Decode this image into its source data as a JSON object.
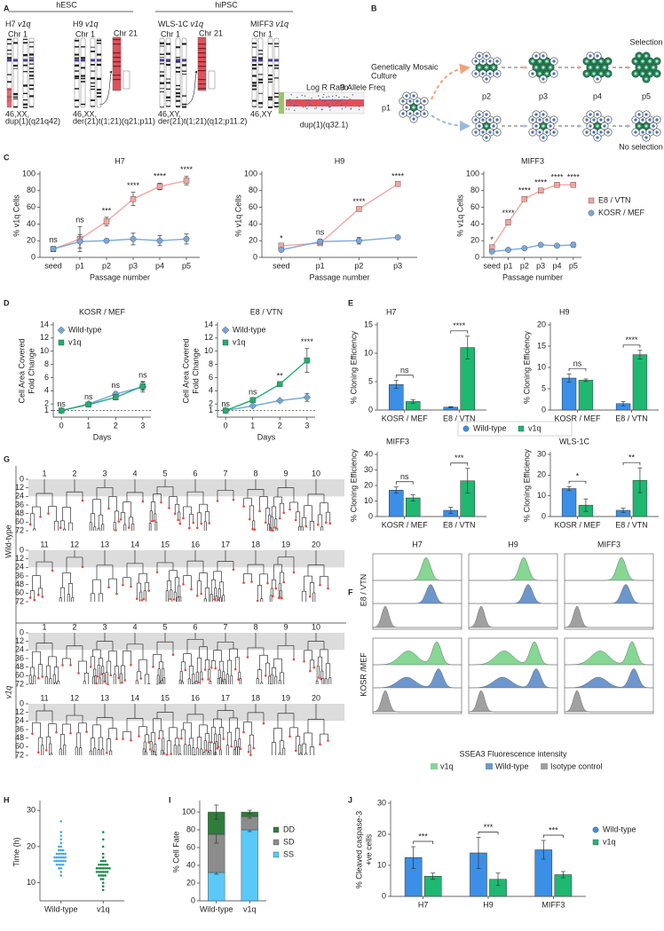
{
  "panel_labels": [
    "A",
    "B",
    "C",
    "D",
    "E",
    "F",
    "G",
    "H",
    "I",
    "J"
  ],
  "panel_a": {
    "groups": [
      "hESC",
      "hiPSC"
    ],
    "lines": [
      {
        "name": "H7",
        "variant": "v1q",
        "karyotype": [
          "46,XX,",
          "dup(1)(q21q42)"
        ]
      },
      {
        "name": "H9",
        "variant": "v1q",
        "karyotype": [
          "46,XX,",
          "der(21)t(1;21)(q21;p11)"
        ]
      },
      {
        "name": "WLS-1C",
        "variant": "v1q",
        "karyotype": [
          "46,XY,",
          "der(21)t(1;21)(q12;p11.2)"
        ]
      },
      {
        "name": "MIFF3",
        "variant": "v1q",
        "karyotype": [
          "46,XY"
        ]
      }
    ],
    "chromosome_labels": [
      "Chr 1",
      "Chr 21"
    ],
    "snp_labels": [
      "Log R Ratio",
      "B Allele Freq"
    ],
    "snp_caption": "dup(1)(q32.1)"
  },
  "panel_b": {
    "start_label": [
      "Genetically Mosaic",
      "Culture"
    ],
    "passages": [
      "p1",
      "p2",
      "p3",
      "p4",
      "p5"
    ],
    "outcomes": [
      "Selection",
      "No selection"
    ]
  },
  "panel_f": {
    "columns": [
      "H7",
      "H9",
      "MIFF3"
    ],
    "rows": [
      "E8 / VTN",
      "KOSR /MEF"
    ],
    "xlabel": "SSEA3 Fluorescence intensity",
    "legend": [
      "v1q",
      "Wild-type",
      "Isotype control"
    ],
    "colors": [
      "#86d694",
      "#6d97cc",
      "#a0a0a0"
    ]
  },
  "panel_g": {
    "groups": [
      "Wild-type",
      "v1q"
    ],
    "tree_labels": [
      "1",
      "2",
      "3",
      "4",
      "5",
      "6",
      "7",
      "8",
      "9",
      "10",
      "11",
      "12",
      "13",
      "14",
      "15",
      "16",
      "17",
      "18",
      "19",
      "20"
    ],
    "yticks": [
      0,
      12,
      24,
      36,
      48,
      60,
      72
    ]
  },
  "chart_data": [
    {
      "type": "line",
      "title": "H7",
      "categories": [
        "seed",
        "p1",
        "p2",
        "p3",
        "p4",
        "p5"
      ],
      "xlabel": "Passage number",
      "ylabel": "% v1q Cells",
      "ylim": [
        0,
        100
      ],
      "yticks": [
        0,
        20,
        40,
        60,
        80,
        100
      ],
      "series": [
        {
          "color": "#f4a6a0",
          "marker": "square",
          "values": [
            10,
            22,
            43,
            70,
            85,
            92
          ],
          "errors": [
            3,
            15,
            5,
            8,
            4,
            5
          ]
        },
        {
          "color": "#7aa8dc",
          "marker": "circle",
          "values": [
            10,
            19,
            20,
            22,
            20,
            22
          ],
          "errors": [
            3,
            8,
            2,
            7,
            6,
            6
          ]
        }
      ],
      "annotations": [
        "ns",
        "ns",
        "***",
        "****",
        "****",
        "****"
      ]
    },
    {
      "type": "line",
      "title": "H9",
      "categories": [
        "seed",
        "p1",
        "p2",
        "p3"
      ],
      "xlabel": "Passage number",
      "ylabel": "% v1q Cells",
      "ylim": [
        0,
        100
      ],
      "yticks": [
        0,
        20,
        40,
        60,
        80,
        100
      ],
      "series": [
        {
          "color": "#f4a6a0",
          "marker": "square",
          "values": [
            14,
            17,
            58,
            88
          ],
          "errors": [
            1,
            2,
            1,
            1
          ]
        },
        {
          "color": "#7aa8dc",
          "marker": "circle",
          "values": [
            9,
            19,
            20,
            24
          ],
          "errors": [
            1,
            3,
            4,
            1
          ]
        }
      ],
      "annotations": [
        "*",
        "ns",
        "****",
        "****"
      ]
    },
    {
      "type": "line",
      "title": "MIFF3",
      "categories": [
        "seed",
        "p1",
        "p2",
        "p3",
        "p4",
        "p5"
      ],
      "xlabel": "Passage number",
      "ylabel": "% v1q Cells",
      "ylim": [
        0,
        100
      ],
      "yticks": [
        0,
        20,
        40,
        60,
        80,
        100
      ],
      "legend": "right",
      "series": [
        {
          "name": "E8 / VTN",
          "color": "#f4a6a0",
          "marker": "square",
          "values": [
            12,
            42,
            70,
            80,
            87,
            87
          ],
          "errors": [
            1,
            3,
            2,
            2,
            1,
            1
          ]
        },
        {
          "name": "KOSR / MEF",
          "color": "#7aa8dc",
          "marker": "circle",
          "values": [
            7,
            9,
            11,
            15,
            14,
            15
          ],
          "errors": [
            1,
            1,
            1,
            1,
            1,
            3
          ]
        }
      ],
      "annotations": [
        "*",
        "****",
        "****",
        "****",
        "****",
        "****"
      ]
    },
    {
      "type": "line",
      "title": "KOSR / MEF",
      "x": [
        0,
        1,
        2,
        3
      ],
      "xlim": [
        -0.3,
        3.3
      ],
      "xticks": [
        0,
        1,
        2,
        3
      ],
      "xlabel": "Days",
      "ylabel": [
        "Cell Area Covered",
        "Fold Change"
      ],
      "ylim": [
        0,
        14
      ],
      "yticks": [
        1,
        2,
        4,
        6,
        8,
        10,
        12,
        14
      ],
      "refline": 1,
      "legend": "upper left",
      "series": [
        {
          "name": "Wild-type",
          "color": "#6ea6dc",
          "marker": "diamond",
          "values": [
            1,
            2,
            3.5,
            4.6
          ],
          "errors": [
            0,
            0.1,
            0.3,
            0.8
          ]
        },
        {
          "name": "v1q",
          "color": "#1fae6b",
          "marker": "square",
          "values": [
            1,
            1.9,
            3,
            4.7
          ],
          "errors": [
            0,
            0.1,
            0.4,
            0.6
          ]
        }
      ],
      "annotations": [
        "ns",
        "ns",
        "ns",
        "ns"
      ]
    },
    {
      "type": "line",
      "title": "E8 / VTN",
      "x": [
        0,
        1,
        2,
        3
      ],
      "xlim": [
        -0.3,
        3.3
      ],
      "xticks": [
        0,
        1,
        2,
        3
      ],
      "xlabel": "Days",
      "ylabel": [
        "Cell Area Covered",
        "Fold Change"
      ],
      "ylim": [
        0,
        14
      ],
      "yticks": [
        1,
        2,
        4,
        6,
        8,
        10,
        12,
        14
      ],
      "refline": 1,
      "legend": "upper left",
      "series": [
        {
          "name": "Wild-type",
          "color": "#6ea6dc",
          "marker": "diamond",
          "values": [
            1,
            1.7,
            2.5,
            3
          ],
          "errors": [
            0,
            0.1,
            0.2,
            0.6
          ]
        },
        {
          "name": "v1q",
          "color": "#1fae6b",
          "marker": "square",
          "values": [
            1,
            2.6,
            5,
            8.6
          ],
          "errors": [
            0,
            0.2,
            0.2,
            1.8
          ]
        }
      ],
      "annotations": [
        "ns",
        "ns",
        "**",
        "****"
      ]
    },
    {
      "type": "bar",
      "title": "H7",
      "categories": [
        "KOSR / MEF",
        "E8 / VTN"
      ],
      "ylabel": "% Cloning Efficiency",
      "ylim": [
        0,
        15
      ],
      "yticks": [
        0,
        5,
        10,
        15
      ],
      "legend": "below",
      "series": [
        {
          "name": "Wild-type",
          "color": "#3b8fe6",
          "marker": "circle",
          "values": [
            4.5,
            0.5
          ],
          "errors": [
            0.7,
            0.1
          ]
        },
        {
          "name": "v1q",
          "color": "#1fb870",
          "marker": "square",
          "values": [
            1.5,
            11
          ],
          "errors": [
            0.3,
            2
          ]
        }
      ],
      "annotations": [
        "ns",
        "****"
      ]
    },
    {
      "type": "bar",
      "title": "H9",
      "categories": [
        "KOSR / MEF",
        "E8 / VTN"
      ],
      "ylabel": "% Cloning Efficiency",
      "ylim": [
        0,
        20
      ],
      "yticks": [
        0,
        5,
        10,
        15,
        20
      ],
      "series": [
        {
          "color": "#3b8fe6",
          "values": [
            7.5,
            1.5
          ],
          "errors": [
            1,
            0.5
          ]
        },
        {
          "color": "#1fb870",
          "values": [
            7,
            13
          ],
          "errors": [
            0.3,
            1
          ]
        }
      ],
      "annotations": [
        "ns",
        "****"
      ]
    },
    {
      "type": "bar",
      "title": "MIFF3",
      "categories": [
        "KOSR / MEF",
        "E8 / VTN"
      ],
      "ylabel": "% Cloning Efficiency",
      "ylim": [
        0,
        40
      ],
      "yticks": [
        0,
        10,
        20,
        30,
        40
      ],
      "series": [
        {
          "color": "#3b8fe6",
          "values": [
            17,
            4
          ],
          "errors": [
            2,
            2
          ]
        },
        {
          "color": "#1fb870",
          "values": [
            12,
            23
          ],
          "errors": [
            2,
            8
          ]
        }
      ],
      "annotations": [
        "ns",
        "***"
      ]
    },
    {
      "type": "bar",
      "title": "WLS-1C",
      "categories": [
        "KOSR / MEF",
        "E8 / VTN"
      ],
      "ylabel": "% Cloning Efficiency",
      "ylim": [
        0,
        30
      ],
      "yticks": [
        0,
        10,
        20,
        30
      ],
      "series": [
        {
          "color": "#3b8fe6",
          "values": [
            13.5,
            3
          ],
          "errors": [
            1,
            1
          ]
        },
        {
          "color": "#1fb870",
          "values": [
            5.5,
            17.5
          ],
          "errors": [
            3,
            6
          ]
        }
      ],
      "annotations": [
        "*",
        "**"
      ]
    },
    {
      "type": "strip",
      "categories": [
        "Wild-type",
        "v1q"
      ],
      "ylabel": "Time (h)",
      "ylim": [
        5,
        32
      ],
      "yticks": [
        10,
        20,
        30
      ],
      "series": [
        {
          "color": "#4aa8e8",
          "values": [
            17,
            18,
            16,
            15,
            19,
            17,
            20,
            14,
            16,
            18,
            17,
            21,
            13,
            15,
            22,
            18,
            16,
            17,
            19,
            24,
            14,
            16,
            18,
            27,
            15,
            17,
            20,
            12,
            16,
            19,
            17,
            18,
            15,
            23,
            16
          ]
        },
        {
          "color": "#1a8a4a",
          "values": [
            14,
            13,
            15,
            12,
            16,
            14,
            11,
            15,
            13,
            17,
            14,
            12,
            18,
            10,
            15,
            13,
            14,
            20,
            12,
            16,
            9,
            14,
            13,
            15,
            22,
            11,
            14,
            16,
            13,
            12,
            24,
            15,
            14,
            8,
            13
          ]
        }
      ]
    },
    {
      "type": "stacked_bar",
      "categories": [
        "Wild-type",
        "v1q"
      ],
      "ylabel": "% Cell Fate",
      "ylim": [
        0,
        110
      ],
      "yticks": [
        0,
        20,
        40,
        60,
        80,
        100
      ],
      "legend": "right",
      "series": [
        {
          "name": "SS",
          "color": "#5bc9f7",
          "values": [
            32,
            80
          ],
          "errors": [
            2,
            2
          ]
        },
        {
          "name": "SD",
          "color": "#8c8c8c",
          "values": [
            43,
            15
          ],
          "errors": [
            10,
            2
          ]
        },
        {
          "name": "DD",
          "color": "#2e7d3a",
          "values": [
            25,
            5
          ],
          "errors": [
            8,
            2
          ]
        }
      ]
    },
    {
      "type": "bar",
      "categories": [
        "H7",
        "H9",
        "MIFF3"
      ],
      "ylabel": [
        "% Cleaved caspase-3",
        "+ve cells"
      ],
      "ylim": [
        0,
        30
      ],
      "yticks": [
        0,
        10,
        20,
        30
      ],
      "legend": "right",
      "series": [
        {
          "name": "Wild-type",
          "color": "#3b8fe6",
          "marker": "circle",
          "values": [
            12.5,
            14,
            15
          ],
          "errors": [
            3.5,
            5,
            3
          ]
        },
        {
          "name": "v1q",
          "color": "#1fb870",
          "marker": "square",
          "values": [
            6.5,
            5.5,
            7
          ],
          "errors": [
            1,
            2,
            1
          ]
        }
      ],
      "annotations": [
        "***",
        "***",
        "***"
      ]
    }
  ]
}
